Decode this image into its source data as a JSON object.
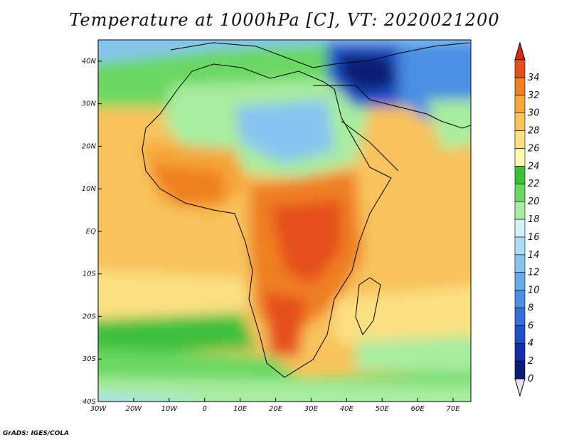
{
  "title": "Temperature at 1000hPa [C], VT: 2020021200",
  "credit": "GrADS: IGES/COLA",
  "map": {
    "lon_range": [
      -30,
      75
    ],
    "lat_range": [
      -40,
      45
    ],
    "lat_labels": [
      {
        "lat": 40,
        "label": "40N"
      },
      {
        "lat": 30,
        "label": "30N"
      },
      {
        "lat": 20,
        "label": "20N"
      },
      {
        "lat": 10,
        "label": "10N"
      },
      {
        "lat": 0,
        "label": "EQ"
      },
      {
        "lat": -10,
        "label": "10S"
      },
      {
        "lat": -20,
        "label": "20S"
      },
      {
        "lat": -30,
        "label": "30S"
      },
      {
        "lat": -40,
        "label": "40S"
      }
    ],
    "lon_labels": [
      {
        "lon": -30,
        "label": "30W"
      },
      {
        "lon": -20,
        "label": "20W"
      },
      {
        "lon": -10,
        "label": "10W"
      },
      {
        "lon": 0,
        "label": "0"
      },
      {
        "lon": 10,
        "label": "10E"
      },
      {
        "lon": 20,
        "label": "20E"
      },
      {
        "lon": 30,
        "label": "30E"
      },
      {
        "lon": 40,
        "label": "40E"
      },
      {
        "lon": 50,
        "label": "50E"
      },
      {
        "lon": 60,
        "label": "60E"
      },
      {
        "lon": 70,
        "label": "70E"
      }
    ]
  },
  "colorbar": {
    "levels": [
      "0",
      "2",
      "4",
      "6",
      "8",
      "10",
      "12",
      "14",
      "16",
      "18",
      "20",
      "22",
      "24",
      "26",
      "28",
      "30",
      "32",
      "34"
    ],
    "colors": [
      "#0b1a73",
      "#1430a8",
      "#1f50c8",
      "#3270d8",
      "#4a8ee2",
      "#67aaea",
      "#88c4f0",
      "#acdcf6",
      "#d4f1fa",
      "#a7ec9f",
      "#6bd862",
      "#3cc03c",
      "#fff8b0",
      "#fbe081",
      "#f8c25c",
      "#f5a637",
      "#ef7f20",
      "#e5501a"
    ],
    "under_color": "#e6e0f8",
    "over_color": "#d42a16"
  }
}
